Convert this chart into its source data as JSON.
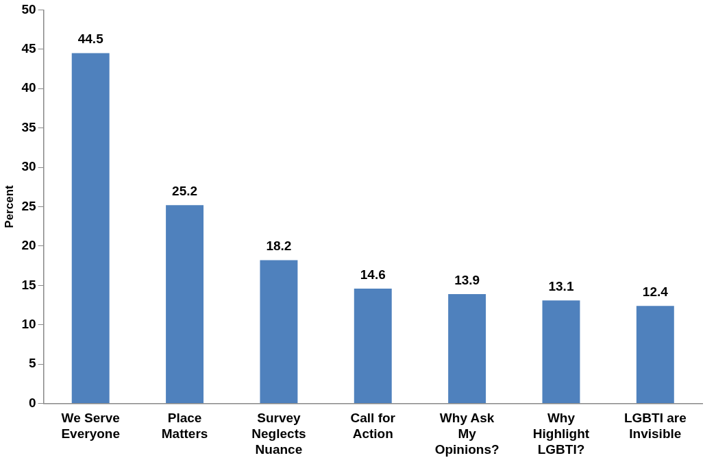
{
  "chart_data": {
    "type": "bar",
    "ylabel": "Percent",
    "categories": [
      "We Serve Everyone",
      "Place Matters",
      "Survey Neglects Nuance",
      "Call for Action",
      "Why Ask My Opinions?",
      "Why Highlight LGBTI?",
      "LGBTI are Invisible"
    ],
    "values": [
      44.5,
      25.2,
      18.2,
      14.6,
      13.9,
      13.1,
      12.4
    ],
    "color": "#4f81bd",
    "ylim": [
      0,
      50
    ],
    "yticks": [
      0,
      5,
      10,
      15,
      20,
      25,
      30,
      35,
      40,
      45,
      50
    ],
    "grid": false,
    "legend": false,
    "data_labels": true
  }
}
